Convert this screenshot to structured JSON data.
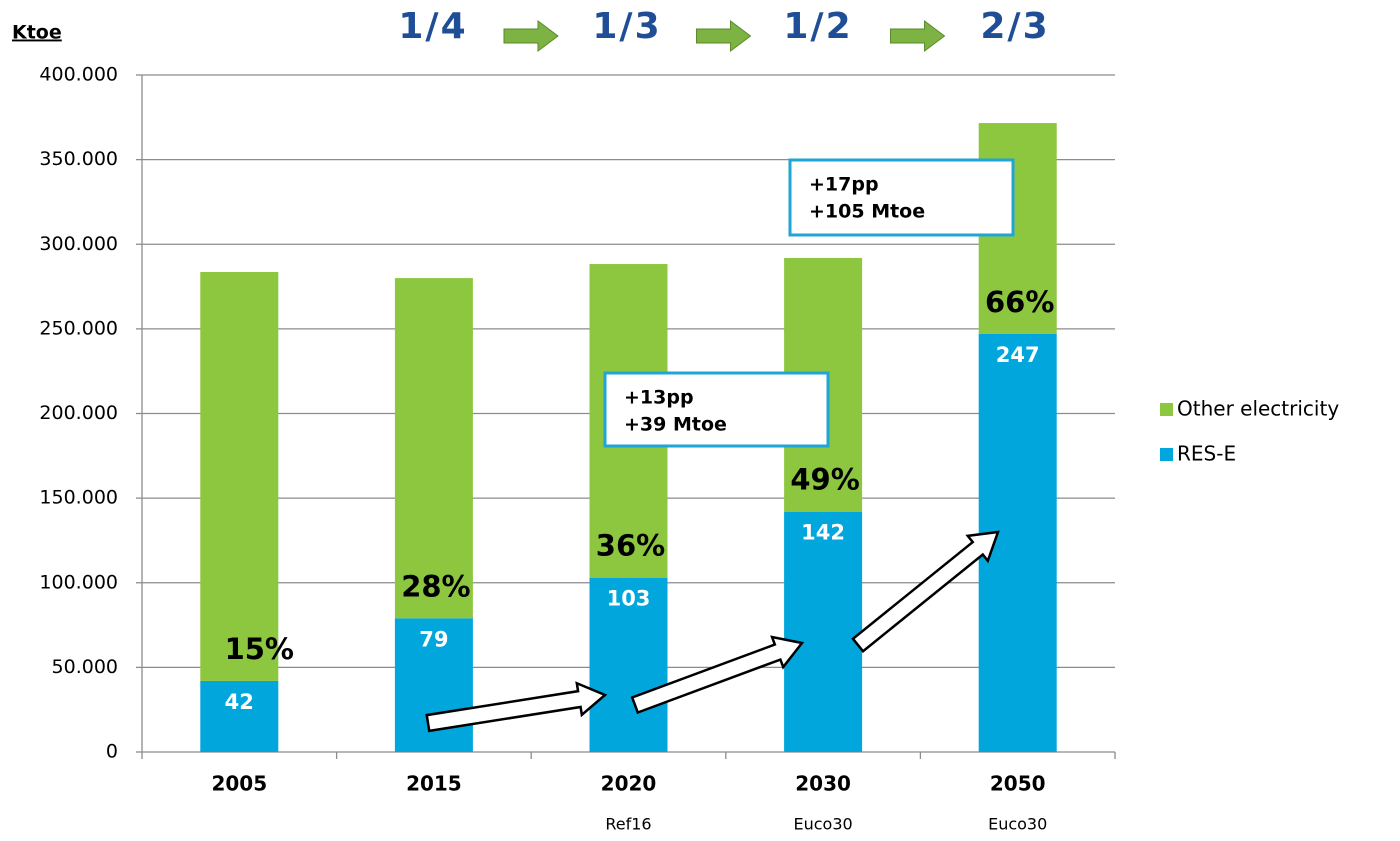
{
  "chart_data": {
    "type": "bar",
    "stacked": true,
    "y_axis_label": "Ktoe",
    "categories": [
      "2005",
      "2015",
      "2020",
      "2030",
      "2050"
    ],
    "sub_labels": [
      null,
      null,
      "Ref16",
      "Euco30",
      "Euco30"
    ],
    "series": [
      {
        "name": "RES-E",
        "color": "#00a6dc",
        "values": [
          42000,
          79000,
          103000,
          142000,
          247000
        ],
        "value_labels": [
          "42",
          "79",
          "103",
          "142",
          "247"
        ]
      },
      {
        "name": "Other electricity",
        "color": "#8dc63f",
        "values": [
          241600,
          201000,
          185300,
          149900,
          124600
        ]
      }
    ],
    "share_labels": [
      "15%",
      "28%",
      "36%",
      "49%",
      "66%"
    ],
    "fractions": [
      "1/4",
      "1/3",
      "1/2",
      "2/3"
    ],
    "annotations": [
      {
        "lines": [
          "+13pp",
          "+39 Mtoe"
        ]
      },
      {
        "lines": [
          "+17pp",
          "+105 Mtoe"
        ]
      }
    ],
    "ylim": [
      0,
      400000
    ],
    "yticks": [
      0,
      {
        "value": 50000,
        "label": "50.000"
      },
      {
        "value": 100000,
        "label": "100.000"
      },
      {
        "value": 150000,
        "label": "150.000"
      },
      {
        "value": 200000,
        "label": "200.000"
      },
      {
        "value": 250000,
        "label": "250.000"
      },
      {
        "value": 300000,
        "label": "300.000"
      },
      {
        "value": 350000,
        "label": "350.000"
      },
      {
        "value": 400000,
        "label": "400.000"
      }
    ],
    "grid": true,
    "legend": "right"
  }
}
